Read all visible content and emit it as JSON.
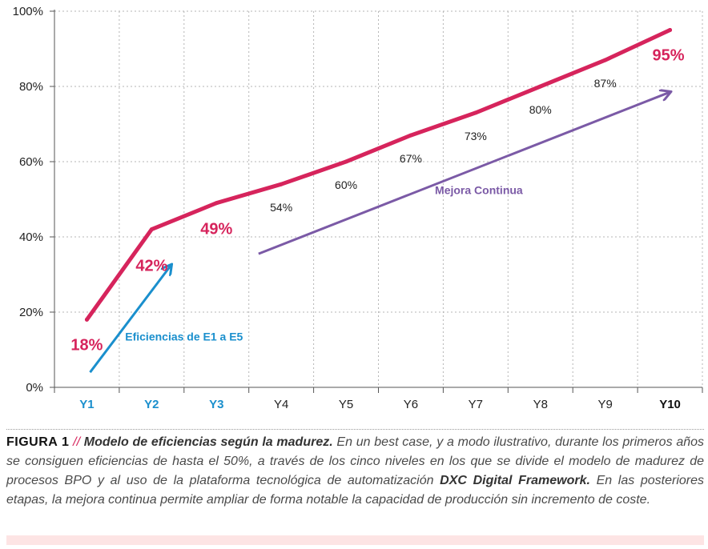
{
  "chart_data": {
    "type": "line",
    "categories": [
      "Y1",
      "Y2",
      "Y3",
      "Y4",
      "Y5",
      "Y6",
      "Y7",
      "Y8",
      "Y9",
      "Y10"
    ],
    "series": [
      {
        "values": [
          18,
          42,
          49,
          54,
          60,
          67,
          73,
          80,
          87,
          95
        ],
        "color": "#d6245c"
      }
    ],
    "value_labels": [
      "18%",
      "42%",
      "49%",
      "54%",
      "60%",
      "67%",
      "73%",
      "80%",
      "87%",
      "95%"
    ],
    "highlighted_labels": [
      "18%",
      "42%",
      "49%",
      "95%"
    ],
    "ylim": [
      0,
      100
    ],
    "yticks": [
      "0%",
      "20%",
      "40%",
      "60%",
      "80%",
      "100%"
    ],
    "grid": true,
    "category_colors": [
      "#1a8fcd",
      "#1a8fcd",
      "#1a8fcd",
      "#222222",
      "#222222",
      "#222222",
      "#222222",
      "#222222",
      "#222222",
      "#111111"
    ],
    "annotations": [
      {
        "text": "Eficiencias de E1 a E5",
        "color": "#1a8fcd"
      },
      {
        "text": "Mejora Continua",
        "color": "#7b5aa6"
      }
    ]
  },
  "caption": {
    "label": "FIGURA 1",
    "separator": "//",
    "title": "Modelo de eficiencias según la madurez.",
    "body_1": "En un best case, y a modo ilustrativo, durante los primeros años se consiguen eficiencias de hasta el 50%, a través de los cinco niveles en los que se divide el modelo de madurez de procesos BPO y al uso de la plataforma tecnológica de automatización",
    "brand": "DXC Digital Framework.",
    "body_2": "En las posteriores etapas, la mejora continua permite ampliar de forma notable la capacidad de producción sin incremento de coste."
  },
  "colors": {
    "accent": "#d6245c",
    "blue": "#1a8fcd",
    "purple": "#7b5aa6"
  }
}
